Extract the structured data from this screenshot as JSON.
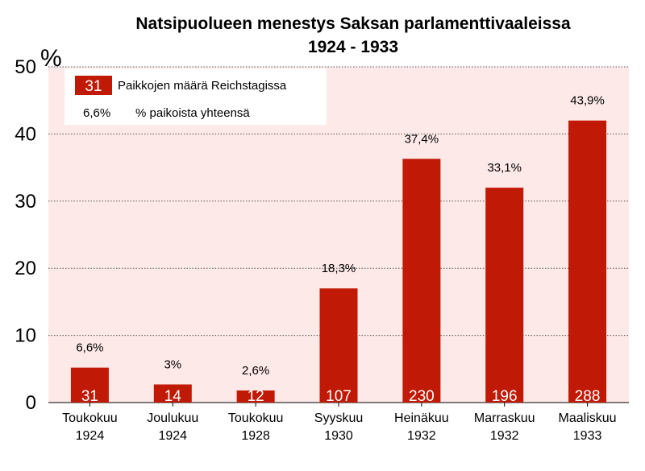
{
  "chart_data": {
    "type": "bar",
    "title_line1": "Natsipuolueen menestys Saksan parlamenttivaaleissa",
    "title_line2": "1924 - 1933",
    "y_unit": "%",
    "ylim": [
      0,
      50
    ],
    "y_ticks": [
      "0",
      "10",
      "20",
      "30",
      "40",
      "50"
    ],
    "grid": true,
    "legend_position": "top-left",
    "legend": {
      "seats_sample": "31",
      "seats_label": "Paikkojen määrä Reichstagissa",
      "pct_sample": "6,6%",
      "pct_label": "% paikoista yhteensä"
    },
    "categories": [
      [
        "Toukokuu",
        "1924"
      ],
      [
        "Joulukuu",
        "1924"
      ],
      [
        "Toukokuu",
        "1928"
      ],
      [
        "Syyskuu",
        "1930"
      ],
      [
        "Heinäkuu",
        "1932"
      ],
      [
        "Marraskuu",
        "1932"
      ],
      [
        "Maaliskuu",
        "1933"
      ]
    ],
    "values": [
      5.2,
      2.7,
      1.8,
      17.0,
      36.3,
      32.0,
      42.0
    ],
    "seats": [
      "31",
      "14",
      "12",
      "107",
      "230",
      "196",
      "288"
    ],
    "pct_labels": [
      "6,6%",
      "3%",
      "2,6%",
      "18,3%",
      "37,4%",
      "33,1%",
      "43,9%"
    ],
    "colors": {
      "bar": "#c01a06",
      "plot_bg": "#fde9e8",
      "legend_bg": "#ffffff",
      "grid": "#555555"
    }
  }
}
